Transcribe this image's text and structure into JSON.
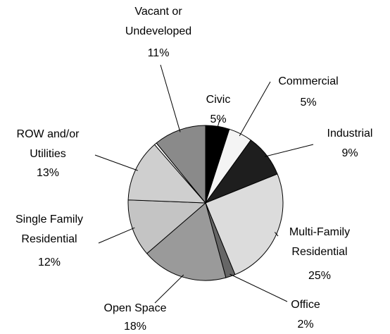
{
  "chart_data": {
    "type": "pie",
    "categories": [
      "Civic",
      "Commercial",
      "Industrial",
      "Multi-Family Residential",
      "Office",
      "Open Space",
      "Single Family Residential",
      "ROW and/or Utilities",
      null,
      "Vacant or Undeveloped"
    ],
    "values": [
      5,
      5,
      9,
      25,
      2,
      18,
      12,
      13,
      0.5,
      11
    ],
    "value_labels": [
      "5%",
      "5%",
      "9%",
      "25%",
      "2%",
      "18%",
      "12%",
      "13%",
      null,
      "11%"
    ],
    "colors": [
      "#000000",
      "#f4f4f4",
      "#1e1e1e",
      "#dcdcdc",
      "#666666",
      "#9a9a9a",
      "#c4c4c4",
      "#cfcfcf",
      "#ffffff",
      "#8a8a8a"
    ]
  }
}
